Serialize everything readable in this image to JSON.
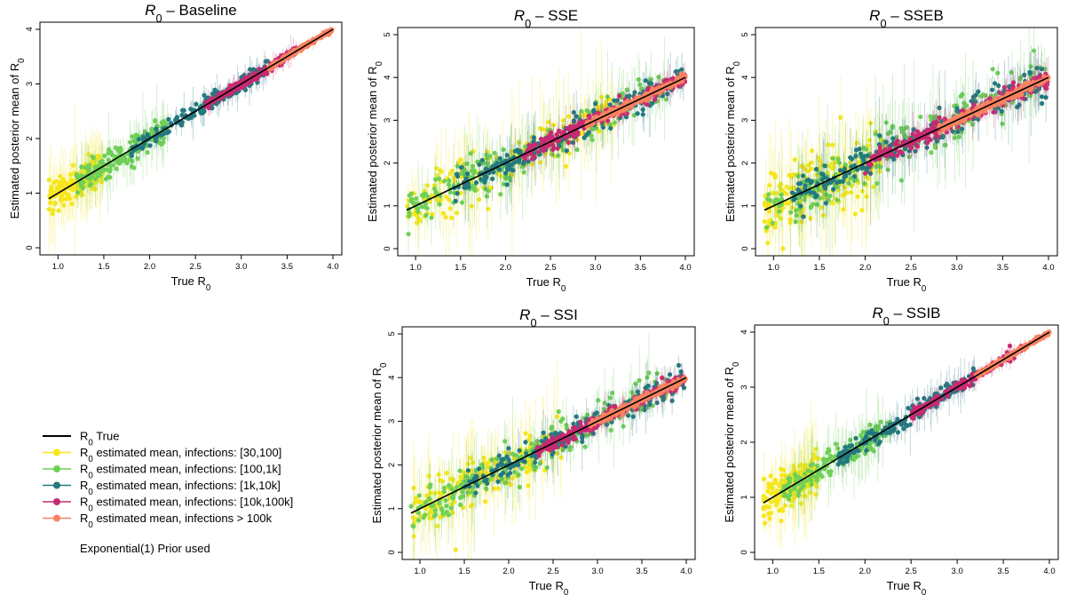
{
  "colors": {
    "true_line": "#000000",
    "g30_100": "#f5e61e",
    "g100_1k": "#6fcf57",
    "g1k_10k": "#23797f",
    "g10k_100k": "#c72a71",
    "g100k": "#f8825f"
  },
  "chart_data": [
    {
      "id": "baseline",
      "type": "scatter",
      "title_symbol": "R",
      "title_sub": "0",
      "title_dash": "–",
      "title_name": "Baseline",
      "xlabel_main": "True R",
      "xlabel_sub": "0",
      "ylabel_main": "Estimated posterior mean of R",
      "ylabel_sub": "0",
      "xlim": [
        0.9,
        4.0
      ],
      "ylim": [
        0,
        4
      ],
      "xticks": [
        1.0,
        1.5,
        2.0,
        2.5,
        3.0,
        3.5,
        4.0
      ],
      "yticks": [
        0,
        1,
        2,
        3,
        4
      ],
      "noise": 1.0,
      "series": [
        {
          "name": "infections: [30,100]",
          "x_range": [
            0.9,
            1.5
          ],
          "spread": 0.16
        },
        {
          "name": "infections: [100,1k]",
          "x_range": [
            1.2,
            2.2
          ],
          "spread": 0.11
        },
        {
          "name": "infections: [1k,10k]",
          "x_range": [
            1.8,
            3.3
          ],
          "spread": 0.07
        },
        {
          "name": "infections: [10k,100k]",
          "x_range": [
            2.6,
            3.6
          ],
          "spread": 0.04
        },
        {
          "name": "infections > 100k",
          "x_range": [
            3.3,
            4.0
          ],
          "spread": 0.02
        }
      ]
    },
    {
      "id": "sse",
      "type": "scatter",
      "title_symbol": "R",
      "title_sub": "0",
      "title_dash": "–",
      "title_name": "SSE",
      "xlabel_main": "True R",
      "xlabel_sub": "0",
      "ylabel_main": "Estimated posterior mean of R",
      "ylabel_sub": "0",
      "xlim": [
        0.9,
        4.0
      ],
      "ylim": [
        0,
        5
      ],
      "xticks": [
        1.0,
        1.5,
        2.0,
        2.5,
        3.0,
        3.5,
        4.0
      ],
      "yticks": [
        0,
        1,
        2,
        3,
        4,
        5
      ],
      "noise": 2.0,
      "series": [
        {
          "name": "infections: [30,100]",
          "x_range": [
            0.9,
            3.2
          ],
          "spread": 0.2
        },
        {
          "name": "infections: [100,1k]",
          "x_range": [
            0.9,
            3.8
          ],
          "spread": 0.16
        },
        {
          "name": "infections: [1k,10k]",
          "x_range": [
            1.4,
            4.0
          ],
          "spread": 0.11
        },
        {
          "name": "infections: [10k,100k]",
          "x_range": [
            2.2,
            4.0
          ],
          "spread": 0.06
        },
        {
          "name": "infections > 100k",
          "x_range": [
            2.9,
            4.0
          ],
          "spread": 0.03
        }
      ]
    },
    {
      "id": "sseb",
      "type": "scatter",
      "title_symbol": "R",
      "title_sub": "0",
      "title_dash": "–",
      "title_name": "SSEB",
      "xlabel_main": "True R",
      "xlabel_sub": "0",
      "ylabel_main": "Estimated posterior mean of R",
      "ylabel_sub": "0",
      "xlim": [
        0.9,
        4.0
      ],
      "ylim": [
        0,
        5
      ],
      "xticks": [
        1.0,
        1.5,
        2.0,
        2.5,
        3.0,
        3.5,
        4.0
      ],
      "yticks": [
        0,
        1,
        2,
        3,
        4,
        5
      ],
      "noise": 2.5,
      "series": [
        {
          "name": "infections: [30,100]",
          "x_range": [
            0.9,
            2.2
          ],
          "spread": 0.22
        },
        {
          "name": "infections: [100,1k]",
          "x_range": [
            0.9,
            4.0
          ],
          "spread": 0.18
        },
        {
          "name": "infections: [1k,10k]",
          "x_range": [
            1.2,
            4.0
          ],
          "spread": 0.12
        },
        {
          "name": "infections: [10k,100k]",
          "x_range": [
            2.0,
            4.0
          ],
          "spread": 0.06
        },
        {
          "name": "infections > 100k",
          "x_range": [
            2.8,
            4.0
          ],
          "spread": 0.03
        }
      ]
    },
    {
      "id": "ssi",
      "type": "scatter",
      "title_symbol": "R",
      "title_sub": "0",
      "title_dash": "–",
      "title_name": "SSI",
      "xlabel_main": "True R",
      "xlabel_sub": "0",
      "ylabel_main": "Estimated posterior mean of R",
      "ylabel_sub": "0",
      "xlim": [
        0.9,
        4.0
      ],
      "ylim": [
        0,
        5
      ],
      "xticks": [
        1.0,
        1.5,
        2.0,
        2.5,
        3.0,
        3.5,
        4.0
      ],
      "yticks": [
        0,
        1,
        2,
        3,
        4,
        5
      ],
      "noise": 2.0,
      "series": [
        {
          "name": "infections: [30,100]",
          "x_range": [
            0.9,
            2.6
          ],
          "spread": 0.2
        },
        {
          "name": "infections: [100,1k]",
          "x_range": [
            0.9,
            3.8
          ],
          "spread": 0.15
        },
        {
          "name": "infections: [1k,10k]",
          "x_range": [
            1.5,
            4.0
          ],
          "spread": 0.1
        },
        {
          "name": "infections: [10k,100k]",
          "x_range": [
            2.3,
            4.0
          ],
          "spread": 0.05
        },
        {
          "name": "infections > 100k",
          "x_range": [
            2.9,
            4.0
          ],
          "spread": 0.03
        }
      ]
    },
    {
      "id": "ssib",
      "type": "scatter",
      "title_symbol": "R",
      "title_sub": "0",
      "title_dash": "–",
      "title_name": "SSIB",
      "xlabel_main": "True R",
      "xlabel_sub": "0",
      "ylabel_main": "Estimated posterior mean of R",
      "ylabel_sub": "0",
      "xlim": [
        0.9,
        4.0
      ],
      "ylim": [
        0,
        4
      ],
      "xticks": [
        1.0,
        1.5,
        2.0,
        2.5,
        3.0,
        3.5,
        4.0
      ],
      "yticks": [
        0,
        1,
        2,
        3,
        4
      ],
      "noise": 1.1,
      "series": [
        {
          "name": "infections: [30,100]",
          "x_range": [
            0.9,
            1.5
          ],
          "spread": 0.17
        },
        {
          "name": "infections: [100,1k]",
          "x_range": [
            1.1,
            2.3
          ],
          "spread": 0.12
        },
        {
          "name": "infections: [1k,10k]",
          "x_range": [
            1.7,
            3.2
          ],
          "spread": 0.07
        },
        {
          "name": "infections: [10k,100k]",
          "x_range": [
            2.5,
            3.7
          ],
          "spread": 0.04
        },
        {
          "name": "infections > 100k",
          "x_range": [
            3.2,
            4.0
          ],
          "spread": 0.02
        }
      ]
    }
  ],
  "legend": {
    "items": [
      {
        "sym": "R",
        "sub": "0",
        "text": " True",
        "kind": "line"
      },
      {
        "sym": "R",
        "sub": "0",
        "text": " estimated mean, infections: [30,100]",
        "kind": "dot"
      },
      {
        "sym": "R",
        "sub": "0",
        "text": " estimated mean, infections: [100,1k]",
        "kind": "dot"
      },
      {
        "sym": "R",
        "sub": "0",
        "text": " estimated mean, infections: [1k,10k]",
        "kind": "dot"
      },
      {
        "sym": "R",
        "sub": "0",
        "text": " estimated mean, infections: [10k,100k]",
        "kind": "dot"
      },
      {
        "sym": "R",
        "sub": "0",
        "text": " estimated mean, infections > 100k",
        "kind": "dot"
      }
    ],
    "note": "Exponential(1) Prior used"
  }
}
